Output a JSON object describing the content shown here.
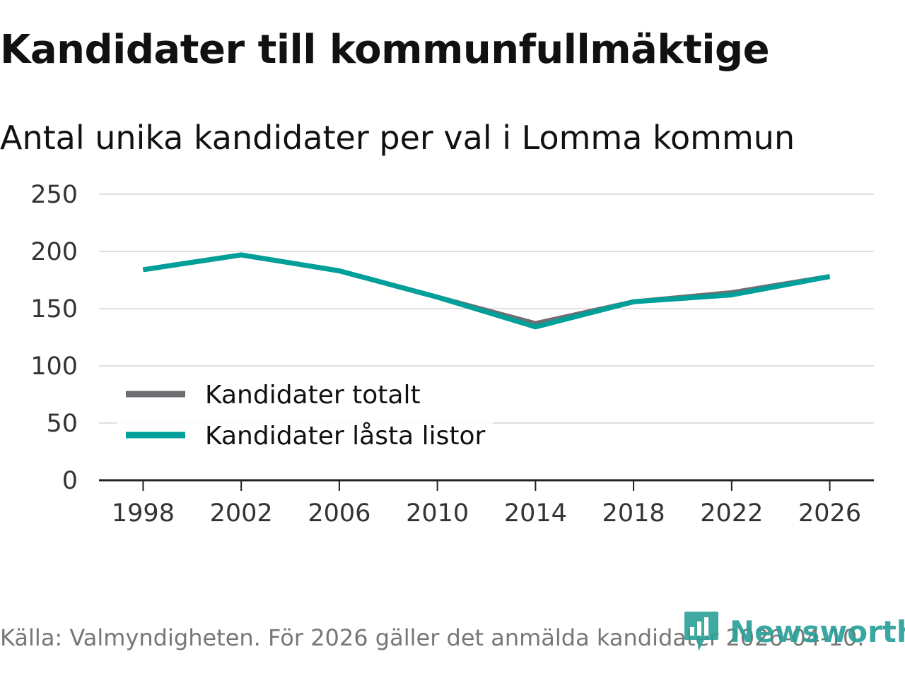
{
  "chart_data": {
    "type": "line",
    "title": "Kandidater till kommunfullmäktige",
    "subtitle": "Antal unika kandidater per val i Lomma kommun",
    "xlabel": "",
    "ylabel": "",
    "x": [
      1998,
      2002,
      2006,
      2010,
      2014,
      2018,
      2022,
      2026
    ],
    "x_tick_labels": [
      "1998",
      "2002",
      "2006",
      "2010",
      "2014",
      "2018",
      "2022",
      "2026"
    ],
    "y_ticks": [
      0,
      50,
      100,
      150,
      200,
      250
    ],
    "y_tick_labels": [
      "0",
      "50",
      "100",
      "150",
      "200",
      "250"
    ],
    "ylim": [
      0,
      250
    ],
    "xlim": [
      1996.2,
      2027.8
    ],
    "grid": true,
    "legend_position": "bottom-left",
    "series": [
      {
        "name": "Kandidater totalt",
        "color": "#6e6e73",
        "values": [
          184,
          197,
          183,
          160,
          137,
          156,
          164,
          178
        ]
      },
      {
        "name": "Kandidater låsta listor",
        "color": "#00a09a",
        "values": [
          184,
          197,
          183,
          160,
          134,
          156,
          162,
          178
        ]
      }
    ]
  },
  "footer": {
    "source": "Källa: Valmyndigheten. För 2026 gäller det anmälda kandidater 2026-04-10.",
    "brand": "Newsworthy"
  },
  "colors": {
    "grid": "#e0e0e0",
    "axis": "#222222",
    "brand": "#2aa198"
  }
}
